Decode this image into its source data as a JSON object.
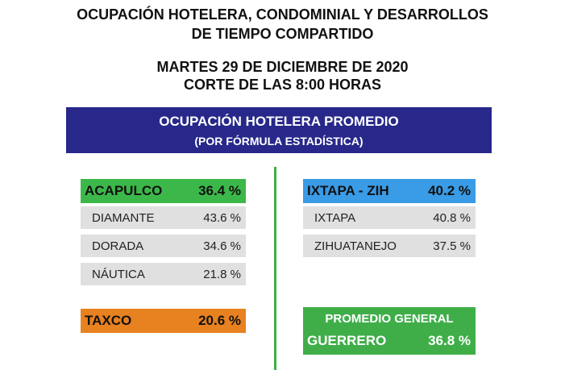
{
  "header": {
    "title_lines": [
      "OCUPACIÓN HOTELERA, CONDOMINIAL Y DESARROLLOS",
      "DE TIEMPO COMPARTIDO"
    ],
    "date": "MARTES 29 DE DICIEMBRE DE 2020",
    "cut": "CORTE DE LAS 8:00 HORAS"
  },
  "banner": {
    "title": "OCUPACIÓN HOTELERA PROMEDIO",
    "subtitle": "(POR FÓRMULA ESTADÍSTICA)"
  },
  "left": {
    "main": {
      "label": "ACAPULCO",
      "value": "36.4 %"
    },
    "rows": [
      {
        "label": "DIAMANTE",
        "value": "43.6 %"
      },
      {
        "label": "DORADA",
        "value": "34.6 %"
      },
      {
        "label": "NÁUTICA",
        "value": "21.8 %"
      }
    ],
    "taxco": {
      "label": "TAXCO",
      "value": "20.6 %"
    }
  },
  "right": {
    "main": {
      "label": "IXTAPA - ZIH",
      "value": "40.2 %"
    },
    "rows": [
      {
        "label": "IXTAPA",
        "value": "40.8 %"
      },
      {
        "label": "ZIHUATANEJO",
        "value": "37.5 %"
      }
    ],
    "general": {
      "title": "PROMEDIO GENERAL",
      "label": "GUERRERO",
      "value": "36.8 %"
    }
  }
}
